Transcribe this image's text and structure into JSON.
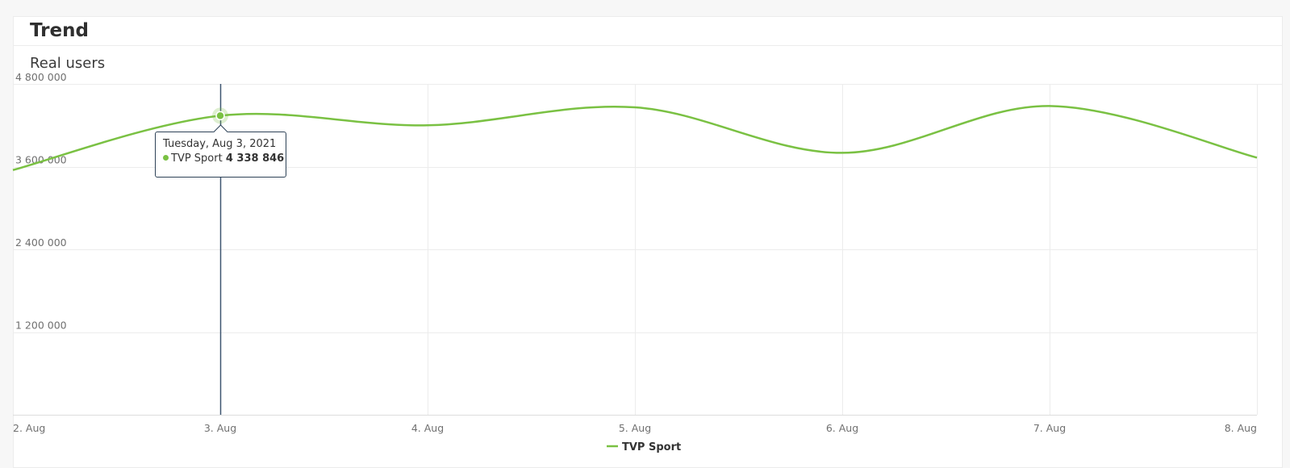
{
  "card": {
    "title": "Trend",
    "subtitle": "Real users"
  },
  "tooltip": {
    "date": "Tuesday, Aug 3, 2021",
    "series": "TVP Sport",
    "value": "4 338 846",
    "x": "3. Aug"
  },
  "colors": {
    "line": "#7ac143",
    "crosshair": "#3d5570",
    "grid": "#ececec"
  },
  "chart_data": {
    "type": "line",
    "title": "Trend",
    "subtitle": "Real users",
    "categories": [
      "2. Aug",
      "3. Aug",
      "4. Aug",
      "5. Aug",
      "6. Aug",
      "7. Aug",
      "8. Aug"
    ],
    "series": [
      {
        "name": "TVP Sport",
        "values": [
          3550000,
          4338846,
          4200000,
          4460000,
          3800000,
          4480000,
          3730000
        ]
      }
    ],
    "yticks": [
      {
        "value": 1200000,
        "label": "1 200 000"
      },
      {
        "value": 2400000,
        "label": "2 400 000"
      },
      {
        "value": 3600000,
        "label": "3 600 000"
      },
      {
        "value": 4800000,
        "label": "4 800 000"
      }
    ],
    "ylim": [
      0,
      4800000
    ],
    "grid": true,
    "legend": "bottom-center",
    "highlight_index": 1
  }
}
